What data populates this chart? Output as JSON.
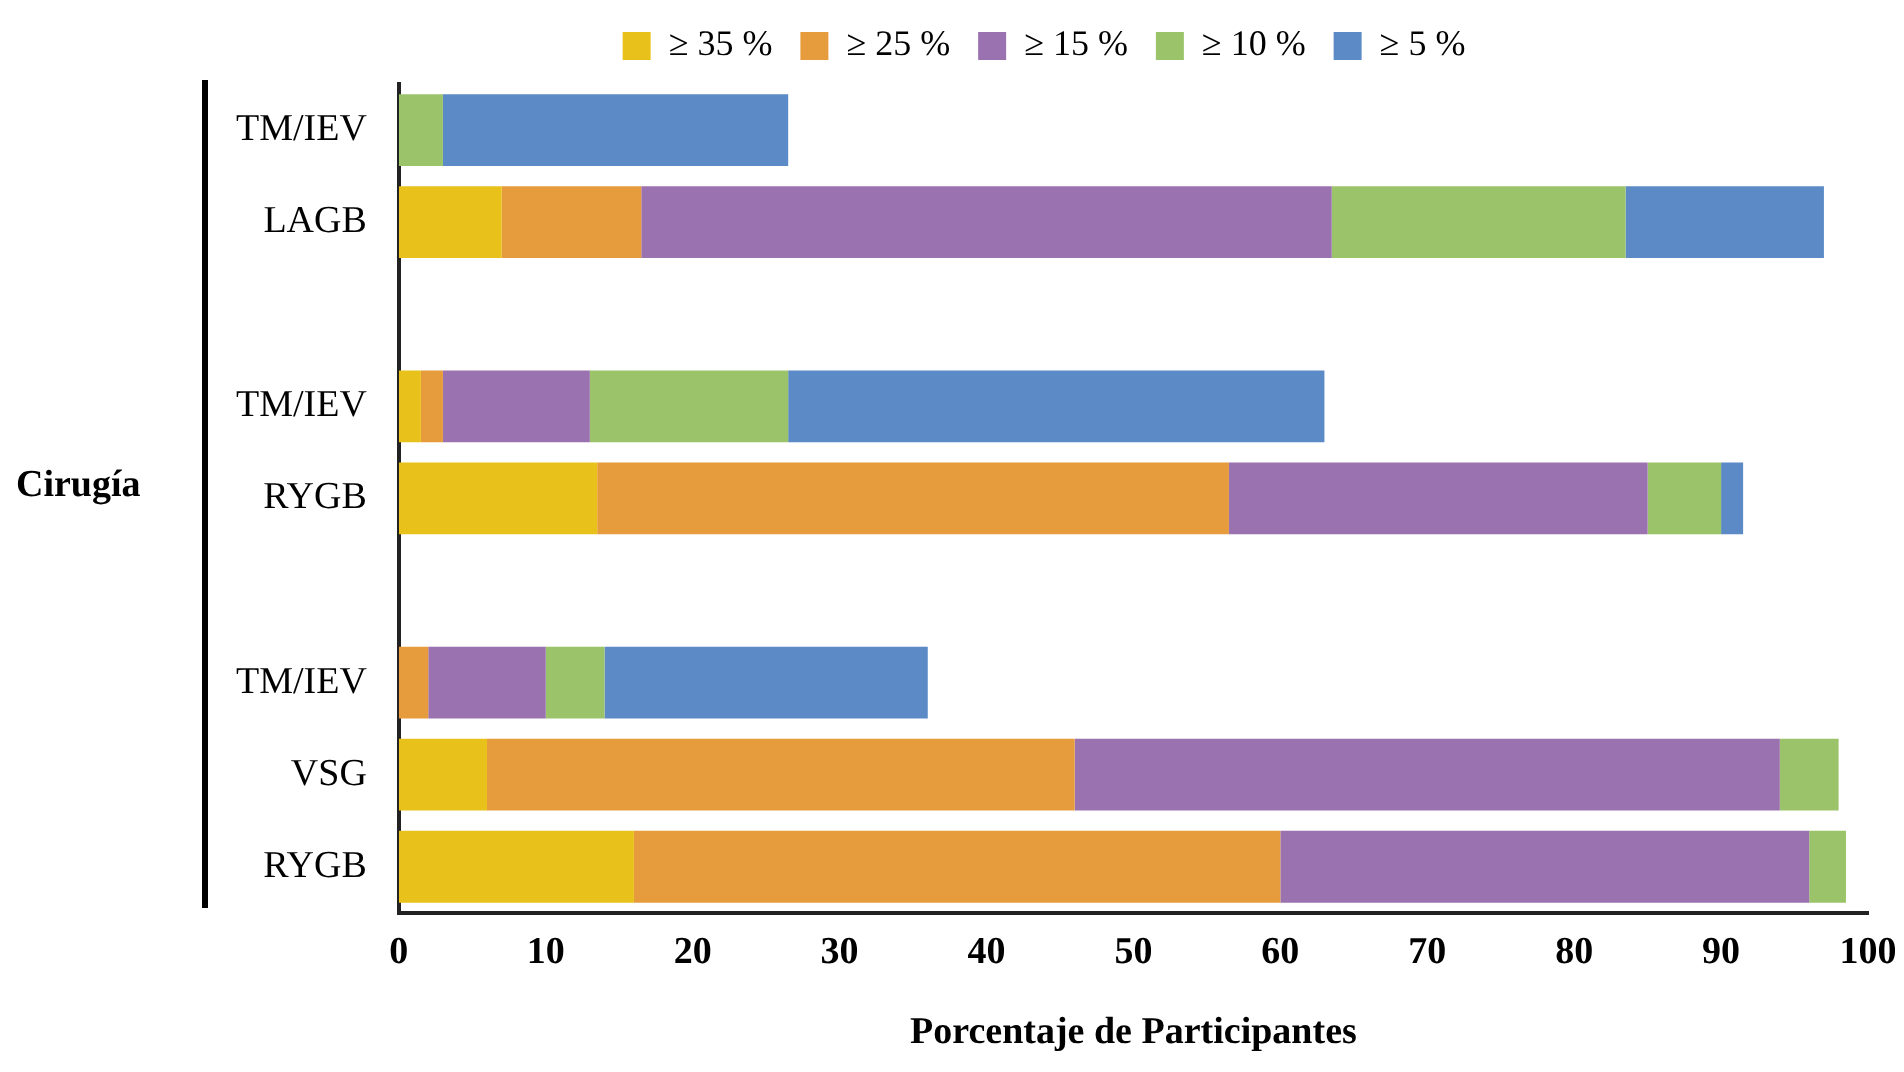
{
  "chart_data": {
    "type": "bar",
    "orientation": "horizontal",
    "stacked": true,
    "xlabel": "Porcentaje de Participantes",
    "ylabel": "Cirugía",
    "categories": [
      "TM/IEV",
      "LAGB",
      null,
      "TM/IEV",
      "RYGB",
      null,
      "TM/IEV",
      "VSG",
      "RYGB"
    ],
    "series": [
      {
        "name": "≥ 35 %",
        "color": "#e8c21a",
        "values": [
          null,
          7,
          null,
          1.5,
          13.5,
          null,
          null,
          6,
          16
        ]
      },
      {
        "name": "≥ 25 %",
        "color": "#e69c3c",
        "values": [
          null,
          9.5,
          null,
          1.5,
          43,
          null,
          2,
          40,
          44
        ]
      },
      {
        "name": "≥ 15 %",
        "color": "#9b72b0",
        "values": [
          null,
          47,
          null,
          10,
          28.5,
          null,
          8,
          48,
          36
        ]
      },
      {
        "name": "≥ 10 %",
        "color": "#9bc46a",
        "values": [
          3,
          20,
          null,
          13.5,
          5,
          null,
          4,
          4,
          2.5
        ]
      },
      {
        "name": "≥ 5 %",
        "color": "#5b8ac6",
        "values": [
          23.5,
          13.5,
          null,
          36.5,
          1.5,
          null,
          22,
          null,
          null
        ]
      }
    ],
    "xlim": [
      0,
      100
    ],
    "xticks": [
      0,
      10,
      20,
      30,
      40,
      50,
      60,
      70,
      80,
      90,
      100
    ],
    "grid": false,
    "legend": "top"
  }
}
